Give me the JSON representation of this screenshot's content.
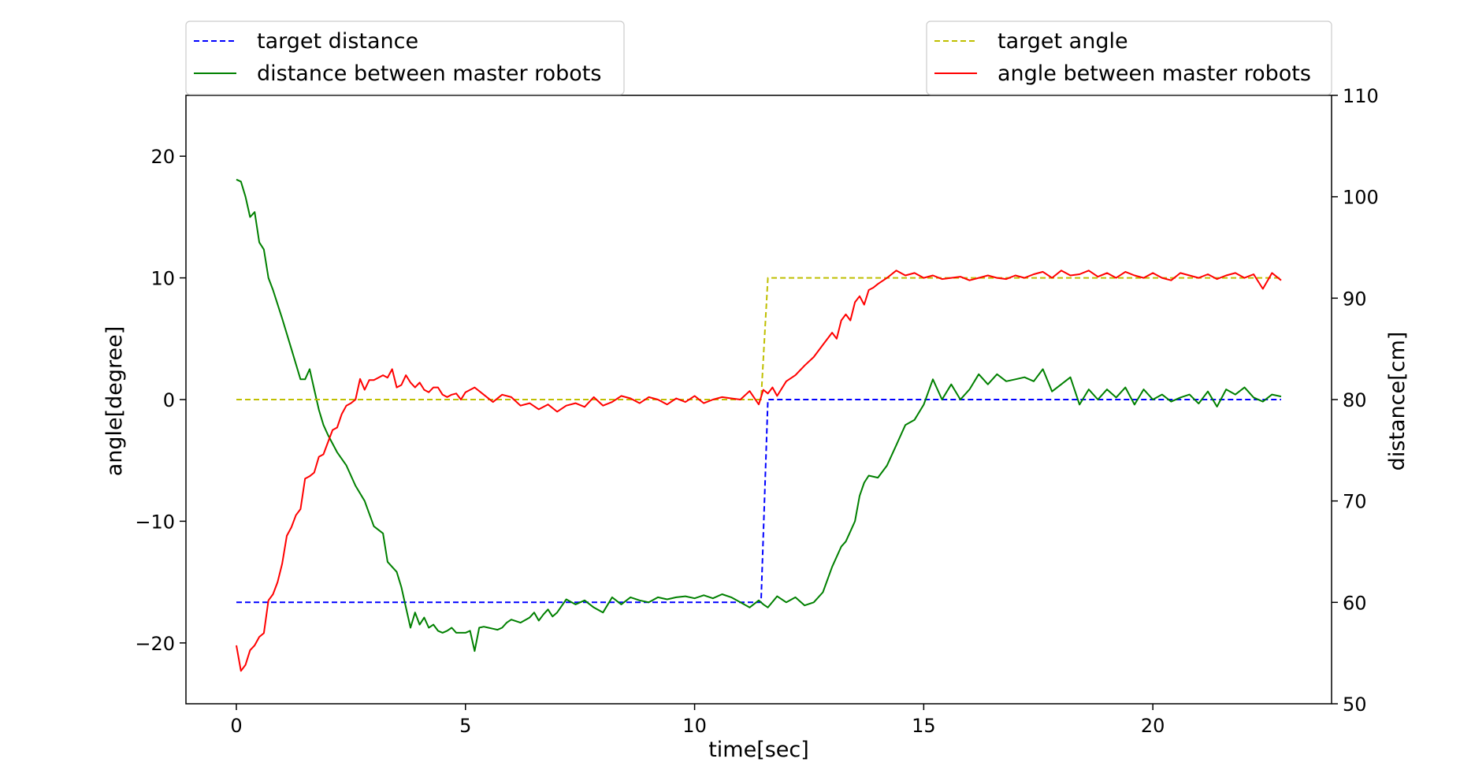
{
  "chart_data": {
    "type": "line",
    "xlabel": "time[sec]",
    "ylabel_left": "angle[degree]",
    "ylabel_right": "distance[cm]",
    "xlim": [
      -1.1,
      23.9
    ],
    "ylim_left": [
      -25,
      25
    ],
    "ylim_right": [
      50,
      110
    ],
    "xticks": [
      0,
      5,
      10,
      15,
      20
    ],
    "yticks_left": [
      -20,
      -10,
      0,
      10,
      20
    ],
    "yticks_left_labels": [
      "−20",
      "−10",
      "0",
      "10",
      "20"
    ],
    "yticks_right": [
      50,
      60,
      70,
      80,
      90,
      100,
      110
    ],
    "grid": false,
    "legends": {
      "left_box": [
        "target distance",
        "distance between master robots"
      ],
      "right_box": [
        "target angle",
        "angle between master robots"
      ],
      "left_box_placement": "above plot, left",
      "right_box_placement": "above plot, right"
    },
    "series": [
      {
        "name": "target distance",
        "axis": "right",
        "color": "#0000ff",
        "style": "dashed",
        "x": [
          0,
          11.45,
          11.6,
          22.8
        ],
        "y": [
          60,
          60,
          80,
          80
        ]
      },
      {
        "name": "distance between master robots",
        "axis": "right",
        "color": "#008000",
        "style": "solid",
        "x": [
          0,
          0.1,
          0.2,
          0.3,
          0.4,
          0.5,
          0.6,
          0.7,
          0.8,
          1.0,
          1.2,
          1.4,
          1.5,
          1.6,
          1.7,
          1.8,
          1.9,
          2.0,
          2.2,
          2.4,
          2.6,
          2.8,
          3.0,
          3.2,
          3.3,
          3.4,
          3.5,
          3.6,
          3.7,
          3.8,
          3.9,
          4.0,
          4.1,
          4.2,
          4.3,
          4.4,
          4.5,
          4.6,
          4.7,
          4.8,
          5.0,
          5.1,
          5.2,
          5.3,
          5.4,
          5.5,
          5.6,
          5.7,
          5.8,
          5.9,
          6.0,
          6.2,
          6.4,
          6.5,
          6.6,
          6.7,
          6.8,
          6.9,
          7.0,
          7.2,
          7.4,
          7.6,
          7.8,
          8.0,
          8.2,
          8.4,
          8.6,
          8.8,
          9.0,
          9.2,
          9.4,
          9.6,
          9.8,
          10.0,
          10.2,
          10.4,
          10.6,
          10.8,
          11.0,
          11.2,
          11.4,
          11.5,
          11.6,
          11.8,
          12.0,
          12.2,
          12.4,
          12.6,
          12.8,
          13.0,
          13.2,
          13.3,
          13.4,
          13.5,
          13.6,
          13.7,
          13.8,
          14.0,
          14.2,
          14.4,
          14.6,
          14.8,
          15.0,
          15.2,
          15.4,
          15.6,
          15.8,
          16.0,
          16.2,
          16.4,
          16.6,
          16.8,
          17.0,
          17.2,
          17.4,
          17.6,
          17.8,
          18.0,
          18.2,
          18.4,
          18.6,
          18.8,
          19.0,
          19.2,
          19.4,
          19.6,
          19.8,
          20.0,
          20.2,
          20.4,
          20.6,
          20.8,
          21.0,
          21.2,
          21.4,
          21.6,
          21.8,
          22.0,
          22.2,
          22.4,
          22.6,
          22.8
        ],
        "y": [
          101.7,
          101.5,
          100.0,
          98.0,
          98.5,
          95.5,
          94.8,
          92.0,
          90.8,
          88.0,
          85.0,
          82.0,
          82.0,
          83.0,
          81.0,
          79.0,
          77.5,
          76.5,
          74.8,
          73.5,
          71.5,
          70.0,
          67.5,
          66.8,
          64.0,
          63.5,
          63.0,
          61.5,
          59.5,
          57.5,
          59.0,
          57.8,
          58.5,
          57.5,
          57.8,
          57.2,
          57.0,
          57.2,
          57.5,
          57.0,
          57.0,
          57.2,
          55.2,
          57.5,
          57.6,
          57.5,
          57.4,
          57.3,
          57.5,
          58.0,
          58.3,
          58.0,
          58.5,
          59.0,
          58.2,
          58.8,
          59.3,
          58.6,
          59.0,
          60.3,
          59.8,
          60.2,
          59.5,
          59.0,
          60.5,
          59.8,
          60.5,
          60.2,
          60.0,
          60.5,
          60.3,
          60.5,
          60.6,
          60.4,
          60.7,
          60.4,
          60.8,
          60.5,
          60.0,
          59.5,
          60.2,
          59.8,
          59.5,
          60.6,
          60.0,
          60.5,
          59.7,
          60.0,
          61.0,
          63.5,
          65.5,
          66.0,
          67.0,
          68.0,
          70.5,
          71.8,
          72.5,
          72.3,
          73.5,
          75.5,
          77.5,
          78.0,
          79.5,
          82.0,
          80.0,
          81.5,
          80.0,
          81.0,
          82.5,
          81.5,
          82.5,
          81.8,
          82.0,
          82.2,
          81.8,
          83.0,
          80.8,
          81.5,
          82.2,
          79.5,
          81.0,
          80.0,
          81.0,
          80.2,
          81.2,
          79.5,
          81.0,
          80.0,
          80.5,
          79.8,
          80.2,
          80.5,
          79.6,
          80.8,
          79.3,
          81.0,
          80.5,
          81.2,
          80.2,
          79.8,
          80.5,
          80.3
        ]
      },
      {
        "name": "target angle",
        "axis": "left",
        "color": "#bfbf00",
        "style": "dashed",
        "x": [
          0,
          11.45,
          11.6,
          22.8
        ],
        "y": [
          0,
          0,
          10,
          10
        ]
      },
      {
        "name": "angle between master robots",
        "axis": "left",
        "color": "#ff0000",
        "style": "solid",
        "x": [
          0,
          0.1,
          0.2,
          0.3,
          0.4,
          0.5,
          0.6,
          0.7,
          0.8,
          0.9,
          1.0,
          1.1,
          1.2,
          1.3,
          1.4,
          1.5,
          1.6,
          1.7,
          1.8,
          1.9,
          2.0,
          2.1,
          2.2,
          2.3,
          2.4,
          2.5,
          2.6,
          2.7,
          2.8,
          2.9,
          3.0,
          3.1,
          3.2,
          3.3,
          3.4,
          3.5,
          3.6,
          3.7,
          3.8,
          3.9,
          4.0,
          4.1,
          4.2,
          4.3,
          4.4,
          4.5,
          4.6,
          4.7,
          4.8,
          4.9,
          5.0,
          5.2,
          5.4,
          5.6,
          5.8,
          6.0,
          6.2,
          6.4,
          6.6,
          6.8,
          7.0,
          7.2,
          7.4,
          7.6,
          7.8,
          8.0,
          8.2,
          8.4,
          8.6,
          8.8,
          9.0,
          9.2,
          9.4,
          9.6,
          9.8,
          10.0,
          10.2,
          10.4,
          10.6,
          10.8,
          11.0,
          11.2,
          11.4,
          11.5,
          11.6,
          11.7,
          11.8,
          12.0,
          12.2,
          12.4,
          12.6,
          12.8,
          13.0,
          13.1,
          13.2,
          13.3,
          13.4,
          13.5,
          13.6,
          13.7,
          13.8,
          13.9,
          14.0,
          14.2,
          14.4,
          14.6,
          14.8,
          15.0,
          15.2,
          15.4,
          15.6,
          15.8,
          16.0,
          16.2,
          16.4,
          16.6,
          16.8,
          17.0,
          17.2,
          17.4,
          17.6,
          17.8,
          18.0,
          18.2,
          18.4,
          18.6,
          18.8,
          19.0,
          19.2,
          19.4,
          19.6,
          19.8,
          20.0,
          20.2,
          20.4,
          20.6,
          20.8,
          21.0,
          21.2,
          21.4,
          21.6,
          21.8,
          22.0,
          22.2,
          22.4,
          22.6,
          22.8
        ],
        "y": [
          -20.2,
          -22.3,
          -21.8,
          -20.6,
          -20.2,
          -19.5,
          -19.2,
          -16.5,
          -16.0,
          -15.0,
          -13.5,
          -11.2,
          -10.5,
          -9.5,
          -9.0,
          -6.5,
          -6.3,
          -6.0,
          -4.7,
          -4.5,
          -3.5,
          -2.5,
          -2.3,
          -1.2,
          -0.5,
          -0.3,
          0.0,
          1.7,
          0.8,
          1.6,
          1.6,
          1.8,
          2.0,
          1.8,
          2.5,
          1.0,
          1.2,
          2.0,
          1.4,
          1.0,
          1.4,
          0.8,
          0.6,
          1.0,
          1.0,
          0.4,
          0.2,
          0.4,
          0.5,
          0.0,
          0.6,
          1.0,
          0.4,
          -0.2,
          0.4,
          0.2,
          -0.5,
          -0.3,
          -0.8,
          -0.4,
          -1.0,
          -0.5,
          -0.3,
          -0.6,
          0.2,
          -0.5,
          -0.2,
          0.3,
          0.1,
          -0.3,
          0.2,
          0.0,
          -0.4,
          0.1,
          -0.2,
          0.3,
          -0.3,
          0.0,
          0.2,
          0.1,
          0.0,
          0.7,
          -0.4,
          0.8,
          0.5,
          1.0,
          0.3,
          1.5,
          2.0,
          2.8,
          3.5,
          4.5,
          5.5,
          5.0,
          6.5,
          7.0,
          6.5,
          8.0,
          8.5,
          7.8,
          9.0,
          9.2,
          9.5,
          10.0,
          10.6,
          10.2,
          10.4,
          10.0,
          10.2,
          9.9,
          10.0,
          10.1,
          9.8,
          10.0,
          10.2,
          10.0,
          9.9,
          10.2,
          10.0,
          10.3,
          10.5,
          10.0,
          10.6,
          10.2,
          10.3,
          10.6,
          10.1,
          10.4,
          10.0,
          10.5,
          10.2,
          10.0,
          10.4,
          10.0,
          9.8,
          10.4,
          10.2,
          10.0,
          10.3,
          9.9,
          10.2,
          10.4,
          10.0,
          10.3,
          9.1,
          10.4,
          9.8
        ]
      }
    ]
  }
}
